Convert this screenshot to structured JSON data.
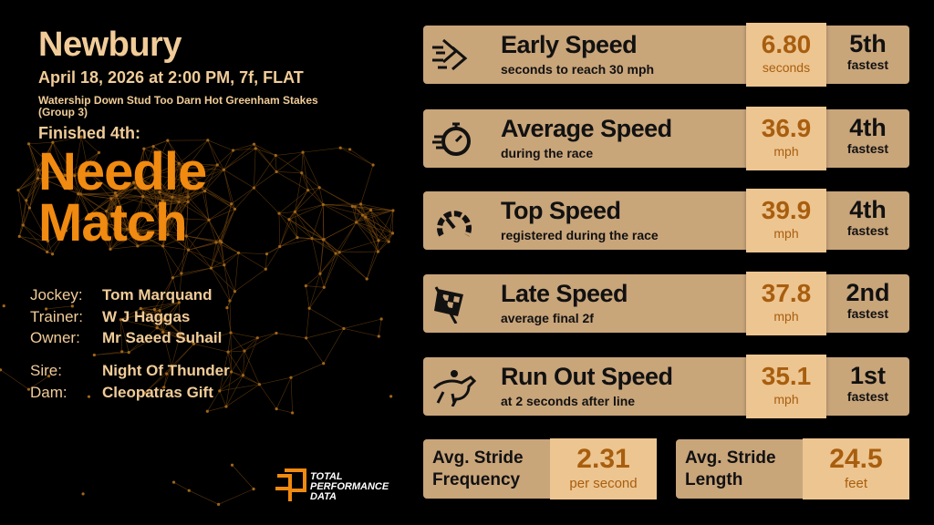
{
  "race": {
    "venue": "Newbury",
    "datetime": "April 18, 2026 at 2:00 PM, 7f, FLAT",
    "name": "Watership Down Stud Too Darn Hot Greenham Stakes (Group 3)",
    "finished": "Finished 4th:",
    "horse_line1": "Needle",
    "horse_line2": "Match"
  },
  "connections": [
    {
      "label": "Jockey:",
      "value": "Tom Marquand"
    },
    {
      "label": "Trainer:",
      "value": "W J Haggas"
    },
    {
      "label": "Owner:",
      "value": "Mr Saeed Suhail"
    }
  ],
  "breeding": [
    {
      "label": "Sire:",
      "value": "Night Of Thunder"
    },
    {
      "label": "Dam:",
      "value": "Cleopatras Gift"
    }
  ],
  "metrics": [
    {
      "icon": "fast-forward-arrows-icon",
      "title": "Early Speed",
      "subtitle": "seconds to reach 30 mph",
      "value": "6.80",
      "unit": "seconds",
      "rank": "5th",
      "rank_label": "fastest"
    },
    {
      "icon": "stopwatch-icon",
      "title": "Average Speed",
      "subtitle": "during the race",
      "value": "36.9",
      "unit": "mph",
      "rank": "4th",
      "rank_label": "fastest"
    },
    {
      "icon": "speedometer-icon",
      "title": "Top Speed",
      "subtitle": "registered during the race",
      "value": "39.9",
      "unit": "mph",
      "rank": "4th",
      "rank_label": "fastest"
    },
    {
      "icon": "checkered-flag-icon",
      "title": "Late Speed",
      "subtitle": "average final 2f",
      "value": "37.8",
      "unit": "mph",
      "rank": "2nd",
      "rank_label": "fastest"
    },
    {
      "icon": "horse-jockey-icon",
      "title": "Run Out Speed",
      "subtitle": "at 2 seconds after line",
      "value": "35.1",
      "unit": "mph",
      "rank": "1st",
      "rank_label": "fastest"
    }
  ],
  "stride": [
    {
      "label1": "Avg. Stride",
      "label2": "Frequency",
      "value": "2.31",
      "unit": "per second"
    },
    {
      "label1": "Avg. Stride",
      "label2": "Length",
      "value": "24.5",
      "unit": "feet"
    }
  ],
  "logo": {
    "line1": "TOTAL",
    "line2": "PERFORMANCE",
    "line3": "DATA"
  },
  "colors": {
    "accent": "#f08a10",
    "panel": "#c9a57a",
    "value_box": "#edc591",
    "value_text": "#a85e0e",
    "title_text": "#f1cc98"
  }
}
